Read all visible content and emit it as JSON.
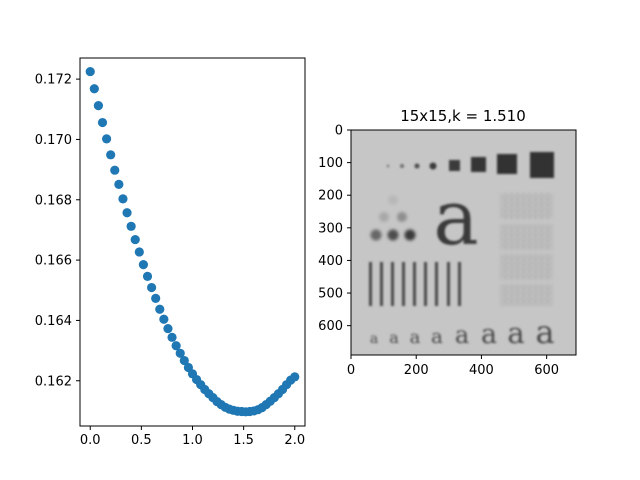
{
  "chart_data": [
    {
      "type": "scatter",
      "title": "",
      "xlabel": "",
      "ylabel": "",
      "xlim": [
        -0.1,
        2.1
      ],
      "ylim": [
        0.1605,
        0.1727
      ],
      "xticks": [
        0.0,
        0.5,
        1.0,
        1.5,
        2.0
      ],
      "xtick_labels": [
        "0.0",
        "0.5",
        "1.0",
        "1.5",
        "2.0"
      ],
      "yticks": [
        0.162,
        0.164,
        0.166,
        0.168,
        0.17,
        0.172
      ],
      "ytick_labels": [
        "0.162",
        "0.164",
        "0.166",
        "0.168",
        "0.170",
        "0.172"
      ],
      "grid": false,
      "marker_color": "#1f77b4",
      "x": [
        0.0,
        0.04,
        0.08,
        0.12,
        0.16,
        0.2,
        0.24,
        0.28,
        0.32,
        0.36,
        0.4,
        0.44,
        0.48,
        0.52,
        0.56,
        0.6,
        0.64,
        0.68,
        0.72,
        0.76,
        0.8,
        0.84,
        0.88,
        0.92,
        0.96,
        1.0,
        1.04,
        1.08,
        1.12,
        1.16,
        1.2,
        1.24,
        1.28,
        1.32,
        1.36,
        1.4,
        1.44,
        1.48,
        1.52,
        1.56,
        1.6,
        1.64,
        1.68,
        1.72,
        1.76,
        1.8,
        1.84,
        1.88,
        1.92,
        1.96,
        2.0
      ],
      "y": [
        0.17225,
        0.17168,
        0.17112,
        0.17056,
        0.17002,
        0.16949,
        0.16898,
        0.16851,
        0.16803,
        0.16757,
        0.16712,
        0.16668,
        0.16627,
        0.16585,
        0.16546,
        0.16509,
        0.16473,
        0.16437,
        0.16404,
        0.16373,
        0.16344,
        0.16316,
        0.16291,
        0.16267,
        0.16244,
        0.16223,
        0.16204,
        0.16187,
        0.16171,
        0.16157,
        0.16144,
        0.16131,
        0.16121,
        0.16112,
        0.16106,
        0.16102,
        0.16099,
        0.16098,
        0.16097,
        0.16098,
        0.161,
        0.16104,
        0.16111,
        0.16121,
        0.16132,
        0.16144,
        0.16157,
        0.16171,
        0.16187,
        0.16202,
        0.16213
      ]
    },
    {
      "type": "image",
      "title": "15x15,k = 1.510",
      "xlim": [
        0,
        690
      ],
      "ylim": [
        690,
        0
      ],
      "xticks": [
        0,
        200,
        400,
        600
      ],
      "xtick_labels": [
        "0",
        "200",
        "400",
        "600"
      ],
      "yticks": [
        0,
        100,
        200,
        300,
        400,
        500,
        600
      ],
      "ytick_labels": [
        "0",
        "100",
        "200",
        "300",
        "400",
        "500",
        "600"
      ],
      "image_text": {
        "big_letter": "a",
        "small_letters": [
          "a",
          "a",
          "a",
          "a",
          "a",
          "a",
          "a",
          "a"
        ]
      }
    }
  ]
}
